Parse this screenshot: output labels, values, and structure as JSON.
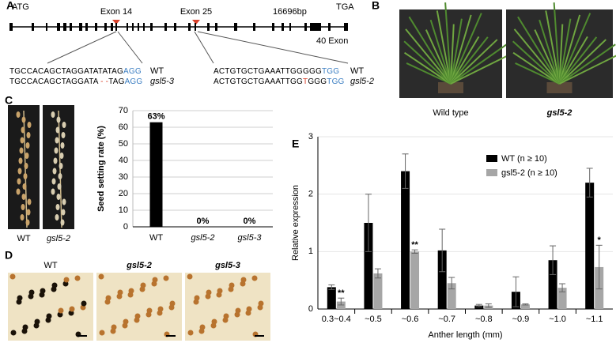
{
  "panel_labels": [
    "A",
    "B",
    "C",
    "D",
    "E"
  ],
  "panel_a": {
    "start": "ATG",
    "end": "TGA",
    "exon_left": "Exon 14",
    "exon_right": "Exon 25",
    "length": "16696bp",
    "exon_count": "40 Exon",
    "left_sequences": [
      {
        "parts": [
          {
            "text": "TGCCACAGCTAGGATATATAG"
          },
          {
            "text": "AGG",
            "color": "#3b7ec2"
          }
        ],
        "name": "WT"
      },
      {
        "parts": [
          {
            "text": "TGCCACAGCTAGGATA"
          },
          {
            "text": " - -",
            "color": "#d9412b"
          },
          {
            "text": "TAG"
          },
          {
            "text": "AGG",
            "color": "#3b7ec2"
          }
        ],
        "name": "gsl5-3"
      }
    ],
    "right_sequences": [
      {
        "parts": [
          {
            "text": "ACTGTGCTGAAATTGGGGG"
          },
          {
            "text": "TGG",
            "color": "#3b7ec2"
          }
        ],
        "name": "WT"
      },
      {
        "parts": [
          {
            "text": "ACTGTGCTGAAATTGG"
          },
          {
            "text": "T",
            "color": "#d9412b"
          },
          {
            "text": "GGG"
          },
          {
            "text": "TGG",
            "color": "#3b7ec2"
          }
        ],
        "name": "gsl5-2"
      }
    ]
  },
  "panel_b": {
    "captions": [
      "Wild type",
      "gsl5-2"
    ]
  },
  "panel_c": {
    "captions": [
      "WT",
      "gsl5-2"
    ]
  },
  "panel_d": {
    "captions": [
      "WT",
      "gsl5-2",
      "gsl5-3"
    ]
  },
  "chart_data": [
    {
      "type": "bar",
      "y_label": "Seed setting rate (%)",
      "categories": [
        "WT",
        "gsl5-2",
        "gsl5-3"
      ],
      "values": [
        63,
        0,
        0
      ],
      "value_labels": [
        "63%",
        "0%",
        "0%"
      ],
      "color": "#000000",
      "ylim": [
        0,
        70
      ],
      "yticks": [
        0,
        10,
        20,
        30,
        40,
        50,
        60,
        70
      ],
      "grid": true
    },
    {
      "type": "grouped_bar",
      "y_label": "Relative expression",
      "x_label": "Anther length (mm)",
      "categories": [
        "0.3~0.4",
        "~0.5",
        "~0.6",
        "~0.7",
        "~0.8",
        "~0.9",
        "~1.0",
        "~1.1"
      ],
      "series": [
        {
          "name": "WT (n ≥ 10)",
          "color": "#000000",
          "values": [
            0.38,
            1.5,
            2.4,
            1.02,
            0.06,
            0.3,
            0.85,
            2.2
          ],
          "errors": [
            0.04,
            0.5,
            0.3,
            0.37,
            0.02,
            0.26,
            0.25,
            0.25
          ]
        },
        {
          "name": "gsl5-2 (n ≥ 10)",
          "color": "#a6a6a6",
          "values": [
            0.13,
            0.62,
            1.0,
            0.45,
            0.06,
            0.08,
            0.37,
            0.73
          ],
          "errors": [
            0.06,
            0.08,
            0.03,
            0.1,
            0.03,
            0.01,
            0.07,
            0.38
          ],
          "significance": [
            "**",
            null,
            "**",
            null,
            null,
            null,
            null,
            "*"
          ]
        }
      ],
      "ylim": [
        0,
        3
      ],
      "yticks": [
        0,
        1,
        2,
        3
      ],
      "grid": true
    }
  ]
}
